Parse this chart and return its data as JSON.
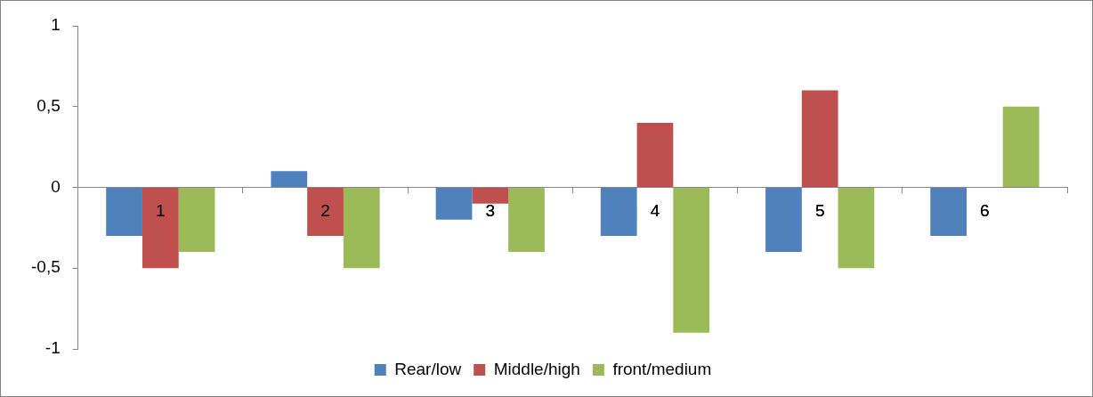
{
  "chart_data": {
    "type": "bar",
    "categories": [
      "1",
      "2",
      "3",
      "4",
      "5",
      "6"
    ],
    "series": [
      {
        "name": "Rear/low",
        "color": "#4f81bd",
        "values": [
          -0.3,
          0.1,
          -0.2,
          -0.3,
          -0.4,
          -0.3
        ]
      },
      {
        "name": "Middle/high",
        "color": "#c0504d",
        "values": [
          -0.5,
          -0.3,
          -0.1,
          0.4,
          0.6,
          0
        ]
      },
      {
        "name": "front/medium",
        "color": "#9bbb59",
        "values": [
          -0.4,
          -0.5,
          -0.4,
          -0.9,
          -0.5,
          0.5
        ]
      }
    ],
    "ylim": [
      -1,
      1
    ],
    "yticks": [
      {
        "value": -1,
        "label": "-1"
      },
      {
        "value": -0.5,
        "label": "-0,5"
      },
      {
        "value": 0,
        "label": "0"
      },
      {
        "value": 0.5,
        "label": "0,5"
      },
      {
        "value": 1,
        "label": "1"
      }
    ],
    "grid": false,
    "legend": "bottom"
  }
}
